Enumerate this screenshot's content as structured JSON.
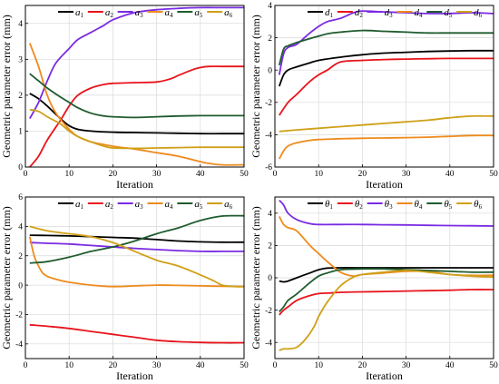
{
  "colors": {
    "black": "#000000",
    "red": "#e8141c",
    "purple": "#7a2be2",
    "orange": "#ef8a1c",
    "green": "#1f5c2e",
    "gold": "#cfa018"
  },
  "chart_data": [
    {
      "type": "line",
      "xlabel": "Iteration",
      "ylabel": "Geometric parameter error (mm)",
      "xlim": [
        0,
        50
      ],
      "ylim": [
        0,
        4.5
      ],
      "xticks": [
        "0",
        "10",
        "20",
        "30",
        "40",
        "50"
      ],
      "yticks": [
        "0",
        "1",
        "2",
        "3",
        "4"
      ],
      "grid": true,
      "legend": "top",
      "series": [
        {
          "name": "a1",
          "sym": "a",
          "sub": "1",
          "color": "#000000",
          "x": [
            1,
            3,
            5,
            8,
            10,
            12,
            15,
            20,
            25,
            30,
            35,
            40,
            45,
            50
          ],
          "y": [
            2.05,
            1.9,
            1.7,
            1.35,
            1.15,
            1.05,
            1.0,
            0.97,
            0.96,
            0.95,
            0.94,
            0.93,
            0.93,
            0.93
          ]
        },
        {
          "name": "a2",
          "sym": "a",
          "sub": "2",
          "color": "#e8141c",
          "x": [
            1,
            3,
            5,
            8,
            10,
            12,
            15,
            18,
            20,
            25,
            30,
            33,
            35,
            38,
            40,
            42,
            45,
            50
          ],
          "y": [
            0.0,
            0.3,
            0.75,
            1.3,
            1.7,
            2.0,
            2.2,
            2.3,
            2.33,
            2.35,
            2.37,
            2.45,
            2.55,
            2.7,
            2.77,
            2.8,
            2.8,
            2.8
          ]
        },
        {
          "name": "a3",
          "sym": "a",
          "sub": "3",
          "color": "#7a2be2",
          "x": [
            1,
            3,
            5,
            7,
            10,
            12,
            15,
            18,
            20,
            25,
            30,
            35,
            40,
            45,
            50
          ],
          "y": [
            1.35,
            1.8,
            2.4,
            2.9,
            3.3,
            3.55,
            3.75,
            3.95,
            4.1,
            4.3,
            4.38,
            4.42,
            4.44,
            4.44,
            4.44
          ]
        },
        {
          "name": "a4",
          "sym": "a",
          "sub": "4",
          "color": "#ef8a1c",
          "x": [
            1,
            3,
            5,
            7,
            10,
            12,
            15,
            20,
            25,
            30,
            35,
            40,
            42,
            45,
            50
          ],
          "y": [
            3.45,
            2.8,
            2.0,
            1.5,
            1.05,
            0.85,
            0.7,
            0.58,
            0.5,
            0.4,
            0.3,
            0.15,
            0.1,
            0.06,
            0.06
          ]
        },
        {
          "name": "a5",
          "sym": "a",
          "sub": "5",
          "color": "#1f5c2e",
          "x": [
            1,
            3,
            5,
            8,
            10,
            12,
            15,
            18,
            20,
            25,
            30,
            35,
            40,
            45,
            50
          ],
          "y": [
            2.6,
            2.4,
            2.2,
            1.95,
            1.8,
            1.65,
            1.5,
            1.42,
            1.4,
            1.38,
            1.4,
            1.42,
            1.43,
            1.43,
            1.43
          ]
        },
        {
          "name": "a6",
          "sym": "a",
          "sub": "6",
          "color": "#cfa018",
          "x": [
            1,
            3,
            5,
            8,
            10,
            12,
            15,
            18,
            20,
            25,
            30,
            35,
            40,
            45,
            50
          ],
          "y": [
            1.6,
            1.55,
            1.4,
            1.2,
            1.0,
            0.85,
            0.7,
            0.58,
            0.53,
            0.52,
            0.53,
            0.54,
            0.55,
            0.55,
            0.55
          ]
        }
      ]
    },
    {
      "type": "line",
      "xlabel": "Iteration",
      "ylabel": "Geometric parameter error (mm)",
      "xlim": [
        0,
        50
      ],
      "ylim": [
        -6,
        4
      ],
      "xticks": [
        "0",
        "10",
        "20",
        "30",
        "40",
        "50"
      ],
      "yticks": [
        "-6",
        "-4",
        "-2",
        "0",
        "2",
        "4"
      ],
      "grid": true,
      "legend": "top",
      "series": [
        {
          "name": "d1",
          "sym": "d",
          "sub": "1",
          "color": "#000000",
          "x": [
            1,
            2,
            3,
            5,
            8,
            10,
            15,
            20,
            25,
            30,
            35,
            40,
            45,
            50
          ],
          "y": [
            -1.0,
            -0.3,
            0.0,
            0.2,
            0.45,
            0.6,
            0.8,
            0.95,
            1.05,
            1.1,
            1.15,
            1.18,
            1.2,
            1.2
          ]
        },
        {
          "name": "d2",
          "sym": "d",
          "sub": "2",
          "color": "#e8141c",
          "x": [
            1,
            3,
            5,
            8,
            10,
            12,
            15,
            20,
            25,
            30,
            35,
            40,
            45,
            50
          ],
          "y": [
            -2.8,
            -2.0,
            -1.5,
            -0.7,
            -0.3,
            0.0,
            0.5,
            0.6,
            0.65,
            0.68,
            0.7,
            0.72,
            0.72,
            0.72
          ]
        },
        {
          "name": "d3",
          "sym": "d",
          "sub": "3",
          "color": "#7a2be2",
          "x": [
            1,
            2,
            3,
            5,
            8,
            10,
            12,
            15,
            18,
            20,
            25,
            30,
            35,
            40,
            45,
            50
          ],
          "y": [
            -0.3,
            1.0,
            1.4,
            1.6,
            2.3,
            2.7,
            3.0,
            3.2,
            3.55,
            3.65,
            3.6,
            3.55,
            3.5,
            3.5,
            3.55,
            3.5
          ]
        },
        {
          "name": "d4",
          "sym": "d",
          "sub": "4",
          "color": "#ef8a1c",
          "x": [
            1,
            2,
            3,
            5,
            8,
            10,
            15,
            20,
            25,
            30,
            35,
            40,
            45,
            50
          ],
          "y": [
            -5.5,
            -5.0,
            -4.7,
            -4.5,
            -4.35,
            -4.3,
            -4.25,
            -4.22,
            -4.2,
            -4.18,
            -4.15,
            -4.1,
            -4.05,
            -4.05
          ]
        },
        {
          "name": "d5",
          "sym": "d",
          "sub": "5",
          "color": "#1f5c2e",
          "x": [
            1,
            2,
            3,
            5,
            8,
            10,
            12,
            15,
            20,
            25,
            30,
            35,
            40,
            45,
            50
          ],
          "y": [
            0.3,
            1.3,
            1.5,
            1.7,
            1.95,
            2.1,
            2.25,
            2.35,
            2.45,
            2.4,
            2.35,
            2.3,
            2.3,
            2.3,
            2.3
          ]
        },
        {
          "name": "d6",
          "sym": "d",
          "sub": "6",
          "color": "#cfa018",
          "x": [
            1,
            5,
            10,
            15,
            20,
            25,
            30,
            35,
            40,
            45,
            50
          ],
          "y": [
            -3.8,
            -3.7,
            -3.6,
            -3.5,
            -3.4,
            -3.3,
            -3.2,
            -3.1,
            -2.95,
            -2.85,
            -2.85
          ]
        }
      ]
    },
    {
      "type": "line",
      "xlabel": "Iteration",
      "ylabel": "Geometric parameter error (mm)",
      "xlim": [
        0,
        50
      ],
      "ylim": [
        -5,
        6
      ],
      "xticks": [
        "0",
        "10",
        "20",
        "30",
        "40",
        "50"
      ],
      "yticks": [
        "-4",
        "-2",
        "0",
        "2",
        "4",
        "6"
      ],
      "grid": true,
      "legend": "top",
      "series": [
        {
          "name": "a1",
          "sym": "a",
          "sub": "1",
          "color": "#000000",
          "x": [
            1,
            5,
            10,
            15,
            20,
            25,
            30,
            35,
            40,
            45,
            50
          ],
          "y": [
            3.4,
            3.38,
            3.35,
            3.3,
            3.25,
            3.2,
            3.1,
            3.0,
            2.95,
            2.92,
            2.92
          ]
        },
        {
          "name": "a2",
          "sym": "a",
          "sub": "2",
          "color": "#e8141c",
          "x": [
            1,
            5,
            10,
            15,
            20,
            25,
            30,
            35,
            40,
            45,
            50
          ],
          "y": [
            -2.7,
            -2.8,
            -2.95,
            -3.15,
            -3.35,
            -3.55,
            -3.75,
            -3.85,
            -3.9,
            -3.92,
            -3.92
          ]
        },
        {
          "name": "a3",
          "sym": "a",
          "sub": "3",
          "color": "#7a2be2",
          "x": [
            1,
            5,
            10,
            15,
            20,
            25,
            30,
            35,
            40,
            45,
            50
          ],
          "y": [
            2.9,
            2.85,
            2.8,
            2.7,
            2.6,
            2.5,
            2.42,
            2.35,
            2.3,
            2.3,
            2.3
          ]
        },
        {
          "name": "a4",
          "sym": "a",
          "sub": "4",
          "color": "#ef8a1c",
          "x": [
            1,
            2,
            3,
            4,
            5,
            7,
            10,
            15,
            20,
            25,
            30,
            35,
            40,
            45,
            50
          ],
          "y": [
            3.3,
            2.0,
            1.3,
            0.8,
            0.6,
            0.4,
            0.2,
            0.0,
            -0.1,
            -0.05,
            0.0,
            -0.02,
            -0.05,
            -0.08,
            -0.1
          ]
        },
        {
          "name": "a5",
          "sym": "a",
          "sub": "5",
          "color": "#1f5c2e",
          "x": [
            1,
            5,
            10,
            15,
            20,
            25,
            30,
            35,
            40,
            45,
            50
          ],
          "y": [
            1.5,
            1.6,
            1.9,
            2.3,
            2.6,
            3.0,
            3.5,
            3.9,
            4.4,
            4.7,
            4.72
          ]
        },
        {
          "name": "a6",
          "sym": "a",
          "sub": "6",
          "color": "#cfa018",
          "x": [
            1,
            5,
            10,
            15,
            20,
            25,
            30,
            35,
            40,
            43,
            45,
            48,
            50
          ],
          "y": [
            4.0,
            3.7,
            3.5,
            3.3,
            2.9,
            2.3,
            1.7,
            1.3,
            0.7,
            0.3,
            0.0,
            -0.1,
            -0.1
          ]
        }
      ]
    },
    {
      "type": "line",
      "xlabel": "Iteration",
      "ylabel": "Geometric parameter error (mm)",
      "xlim": [
        0,
        50
      ],
      "ylim": [
        -5,
        5
      ],
      "xticks": [
        "0",
        "10",
        "20",
        "30",
        "40",
        "50"
      ],
      "yticks": [
        "-4",
        "-2",
        "0",
        "2",
        "4"
      ],
      "grid": true,
      "legend": "top",
      "series": [
        {
          "name": "θ1",
          "sym": "θ",
          "sub": "1",
          "color": "#000000",
          "x": [
            1,
            2,
            3,
            5,
            8,
            10,
            12,
            15,
            20,
            25,
            30,
            35,
            40,
            45,
            50
          ],
          "y": [
            -0.2,
            -0.25,
            -0.2,
            0.0,
            0.3,
            0.5,
            0.6,
            0.62,
            0.62,
            0.62,
            0.62,
            0.62,
            0.62,
            0.62,
            0.62
          ]
        },
        {
          "name": "θ2",
          "sym": "θ",
          "sub": "2",
          "color": "#e8141c",
          "x": [
            1,
            2,
            3,
            5,
            8,
            10,
            12,
            15,
            20,
            25,
            30,
            35,
            40,
            45,
            50
          ],
          "y": [
            -2.3,
            -2.0,
            -1.8,
            -1.4,
            -1.1,
            -0.98,
            -0.95,
            -0.9,
            -0.87,
            -0.85,
            -0.82,
            -0.8,
            -0.77,
            -0.73,
            -0.73
          ]
        },
        {
          "name": "θ3",
          "sym": "θ",
          "sub": "3",
          "color": "#7a2be2",
          "x": [
            1,
            2,
            3,
            5,
            8,
            10,
            15,
            20,
            25,
            30,
            35,
            40,
            45,
            50
          ],
          "y": [
            4.8,
            4.5,
            4.0,
            3.6,
            3.35,
            3.3,
            3.3,
            3.3,
            3.28,
            3.27,
            3.25,
            3.23,
            3.22,
            3.2
          ]
        },
        {
          "name": "θ4",
          "sym": "θ",
          "sub": "4",
          "color": "#ef8a1c",
          "x": [
            1,
            2,
            3,
            5,
            8,
            10,
            12,
            15,
            18,
            20,
            25,
            30,
            35,
            40,
            45,
            50
          ],
          "y": [
            3.8,
            3.3,
            3.1,
            2.9,
            2.0,
            1.5,
            1.0,
            0.35,
            0.1,
            0.2,
            0.3,
            0.4,
            0.4,
            0.2,
            0.15,
            0.15
          ]
        },
        {
          "name": "θ5",
          "sym": "θ",
          "sub": "5",
          "color": "#1f5c2e",
          "x": [
            1,
            2,
            3,
            5,
            8,
            10,
            12,
            15,
            20,
            25,
            30,
            35,
            40,
            45,
            50
          ],
          "y": [
            -2.1,
            -1.8,
            -1.4,
            -1.0,
            -0.3,
            0.1,
            0.3,
            0.5,
            0.55,
            0.55,
            0.5,
            0.45,
            0.4,
            0.35,
            0.35
          ]
        },
        {
          "name": "θ6",
          "sym": "θ",
          "sub": "6",
          "color": "#cfa018",
          "x": [
            1,
            2,
            3,
            5,
            7,
            9,
            10,
            12,
            15,
            18,
            20,
            25,
            30,
            35,
            40,
            45,
            50
          ],
          "y": [
            -4.5,
            -4.4,
            -4.4,
            -4.3,
            -3.8,
            -3.0,
            -2.4,
            -1.5,
            -0.5,
            0.05,
            0.2,
            0.35,
            0.45,
            0.35,
            0.2,
            0.1,
            0.05
          ]
        }
      ]
    }
  ]
}
